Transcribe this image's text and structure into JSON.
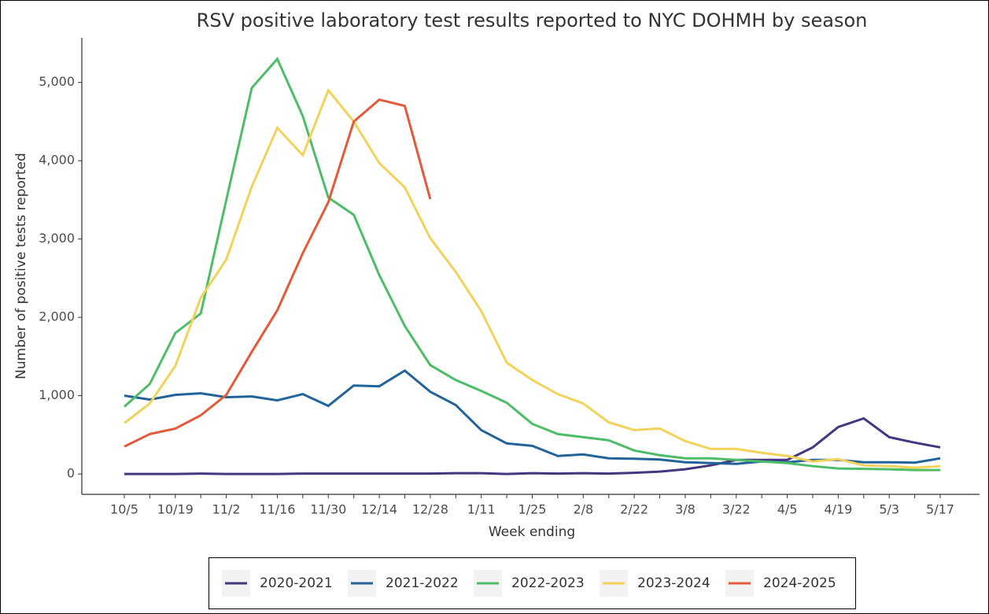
{
  "chart_data": {
    "type": "line",
    "title": "RSV positive laboratory test results reported to NYC DOHMH by season",
    "x_label": "Week ending",
    "y_label": "Number of positive tests reported",
    "categories": [
      "10/5",
      null,
      "10/19",
      null,
      "11/2",
      null,
      "11/16",
      null,
      "11/30",
      null,
      "12/14",
      null,
      "12/28",
      null,
      "1/11",
      null,
      "1/25",
      null,
      "2/8",
      null,
      "2/22",
      null,
      "3/8",
      null,
      "3/22",
      null,
      "4/5",
      null,
      "4/19",
      null,
      "5/3",
      null,
      "5/17"
    ],
    "ylim": [
      -260,
      5570
    ],
    "yticks": [
      0,
      {
        "value": 1000,
        "label": "1,000"
      },
      {
        "value": 2000,
        "label": "2,000"
      },
      {
        "value": 3000,
        "label": "3,000"
      },
      {
        "value": 4000,
        "label": "4,000"
      },
      {
        "value": 5000,
        "label": "5,000"
      }
    ],
    "grid": false,
    "legend": "bottom",
    "series": [
      {
        "name": "2020-2021",
        "color": "#46357f",
        "values": [
          0,
          0,
          0,
          5,
          0,
          0,
          0,
          5,
          5,
          5,
          5,
          5,
          5,
          10,
          10,
          0,
          10,
          5,
          10,
          5,
          15,
          30,
          60,
          110,
          180,
          180,
          180,
          340,
          600,
          710,
          470,
          400,
          340
        ]
      },
      {
        "name": "2021-2022",
        "color": "#22639a",
        "values": [
          1000,
          950,
          1010,
          1030,
          980,
          990,
          940,
          1020,
          870,
          1130,
          1120,
          1320,
          1050,
          880,
          560,
          390,
          360,
          230,
          250,
          200,
          195,
          185,
          150,
          140,
          130,
          160,
          150,
          180,
          180,
          150,
          150,
          145,
          200
        ]
      },
      {
        "name": "2022-2023",
        "color": "#4dbd67",
        "values": [
          860,
          1150,
          1800,
          2050,
          3500,
          4930,
          5300,
          4570,
          3530,
          3310,
          2540,
          1890,
          1390,
          1200,
          1060,
          910,
          640,
          510,
          470,
          430,
          300,
          240,
          200,
          200,
          180,
          160,
          140,
          100,
          70,
          65,
          60,
          50,
          50
        ]
      },
      {
        "name": "2023-2024",
        "color": "#f2d25b",
        "values": [
          650,
          900,
          1380,
          2250,
          2740,
          3670,
          4420,
          4070,
          4900,
          4500,
          3970,
          3660,
          3010,
          2580,
          2080,
          1420,
          1200,
          1020,
          900,
          660,
          560,
          580,
          420,
          320,
          320,
          270,
          230,
          160,
          190,
          110,
          100,
          80,
          100
        ]
      },
      {
        "name": "2024-2025",
        "color": "#e35a3a",
        "values": [
          350,
          510,
          580,
          750,
          1010,
          1560,
          2090,
          2820,
          3470,
          4500,
          4780,
          4700,
          3510,
          null,
          null,
          null,
          null,
          null,
          null,
          null,
          null,
          null,
          null,
          null,
          null,
          null,
          null,
          null,
          null,
          null,
          null,
          null,
          null
        ]
      }
    ]
  }
}
